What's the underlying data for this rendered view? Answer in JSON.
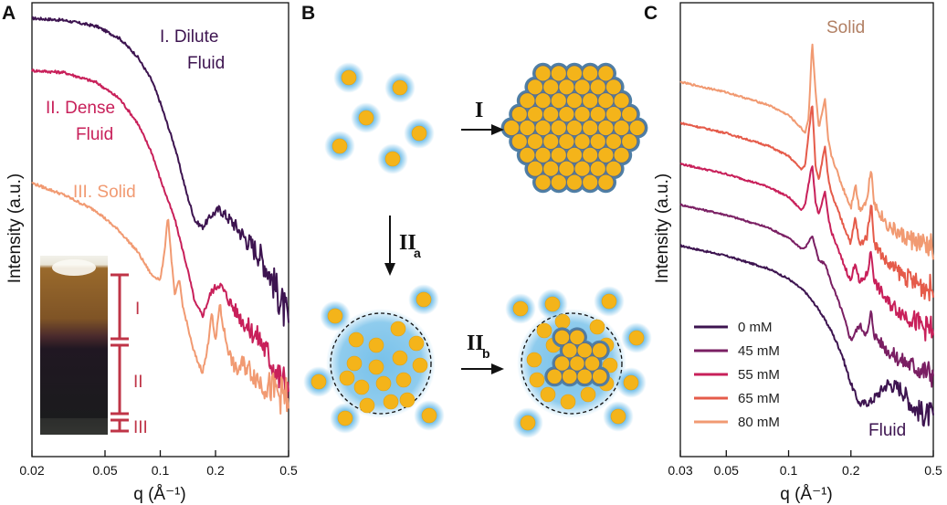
{
  "colors": {
    "dark_purple": "#3d1450",
    "plum": "#7a1f63",
    "magenta": "#c8205a",
    "red_orange": "#e55b4a",
    "salmon": "#f19a72",
    "sphere_fill": "#f4b41a",
    "glow": "#5fb6e6",
    "bracket": "#bf3447"
  },
  "panelA": {
    "label": "A",
    "xlabel": "q (Å⁻¹)",
    "ylabel": "Intensity (a.u.)",
    "annotations": {
      "dilute_1": "I. Dilute",
      "dilute_2": "Fluid",
      "dense_1": "II. Dense",
      "dense_2": "Fluid",
      "solid": "III. Solid"
    },
    "inset_labels": [
      "I",
      "II",
      "III"
    ]
  },
  "panelB": {
    "label": "B",
    "arrow_I": "I",
    "arrow_IIa": "II",
    "arrow_IIa_sub": "a",
    "arrow_IIb": "II",
    "arrow_IIb_sub": "b"
  },
  "panelC": {
    "label": "C",
    "xlabel": "q (Å⁻¹)",
    "ylabel": "Intensity (a.u.)",
    "top_label": "Solid",
    "bottom_label": "Fluid"
  },
  "chart_data": [
    {
      "type": "line",
      "panel": "A",
      "xlabel": "q (Å⁻¹)",
      "ylabel": "Intensity (a.u.)",
      "xscale": "log",
      "xlim": [
        0.02,
        0.5
      ],
      "xticks": [
        0.02,
        0.05,
        0.1,
        0.2,
        0.5
      ],
      "xtick_labels": [
        "0.02",
        "0.05",
        "0.1",
        "0.2",
        "0.5"
      ],
      "y_units": "arbitrary (offset curves, no y ticks)",
      "series": [
        {
          "name": "I. Dilute Fluid",
          "color": "#3d1450",
          "x": [
            0.02,
            0.03,
            0.045,
            0.06,
            0.075,
            0.09,
            0.1,
            0.12,
            0.14,
            0.155,
            0.17,
            0.19,
            0.21,
            0.25,
            0.3,
            0.35,
            0.4,
            0.45,
            0.5
          ],
          "y": [
            9.5,
            9.45,
            9.3,
            9.0,
            8.55,
            7.95,
            7.4,
            6.3,
            5.1,
            4.45,
            4.3,
            4.6,
            4.75,
            4.4,
            3.95,
            3.6,
            3.1,
            2.5,
            1.9
          ]
        },
        {
          "name": "II. Dense Fluid",
          "color": "#c8205a",
          "x": [
            0.02,
            0.03,
            0.045,
            0.06,
            0.075,
            0.09,
            0.1,
            0.12,
            0.14,
            0.155,
            0.17,
            0.19,
            0.21,
            0.25,
            0.3,
            0.35,
            0.4,
            0.45,
            0.5
          ],
          "y": [
            8.2,
            8.15,
            7.9,
            7.5,
            6.9,
            6.15,
            5.5,
            4.5,
            3.3,
            2.4,
            2.1,
            2.7,
            2.9,
            2.3,
            1.8,
            1.5,
            1.0,
            0.5,
            0.3
          ]
        },
        {
          "name": "III. Solid",
          "color": "#f19a72",
          "x": [
            0.02,
            0.03,
            0.045,
            0.06,
            0.075,
            0.09,
            0.1,
            0.105,
            0.11,
            0.115,
            0.12,
            0.127,
            0.133,
            0.14,
            0.15,
            0.16,
            0.17,
            0.18,
            0.19,
            0.2,
            0.21,
            0.225,
            0.24,
            0.26,
            0.28,
            0.3,
            0.33,
            0.36,
            0.4,
            0.45,
            0.5
          ],
          "y": [
            5.4,
            5.1,
            4.7,
            4.2,
            3.7,
            3.1,
            3.0,
            3.6,
            4.6,
            3.5,
            2.6,
            3.0,
            2.3,
            1.9,
            1.3,
            0.95,
            0.7,
            1.2,
            2.2,
            1.4,
            2.4,
            1.6,
            1.1,
            0.7,
            0.9,
            0.8,
            0.6,
            0.4,
            0.3,
            0.15,
            0.0
          ]
        }
      ]
    },
    {
      "type": "line",
      "panel": "C",
      "xlabel": "q (Å⁻¹)",
      "ylabel": "Intensity (a.u.)",
      "xscale": "log",
      "xlim": [
        0.03,
        0.5
      ],
      "xticks": [
        0.03,
        0.05,
        0.1,
        0.2,
        0.5
      ],
      "xtick_labels": [
        "0.03",
        "0.05",
        "0.1",
        "0.2",
        "0.5"
      ],
      "y_units": "arbitrary (offset curves, no y ticks)",
      "legend_position": "bottom-left",
      "series": [
        {
          "name": "0 mM",
          "color": "#3d1450",
          "offset": 0.0,
          "x": [
            0.03,
            0.05,
            0.08,
            0.1,
            0.12,
            0.14,
            0.16,
            0.18,
            0.2,
            0.22,
            0.25,
            0.3,
            0.35,
            0.4,
            0.45,
            0.5
          ],
          "y": [
            7.0,
            6.6,
            6.1,
            5.7,
            5.2,
            4.5,
            3.7,
            2.8,
            1.6,
            0.8,
            0.9,
            1.6,
            1.4,
            0.7,
            0.4,
            0.35
          ]
        },
        {
          "name": "45 mM",
          "color": "#7a1f63",
          "offset": 1.6,
          "x": [
            0.03,
            0.05,
            0.08,
            0.1,
            0.115,
            0.12,
            0.13,
            0.14,
            0.15,
            0.16,
            0.18,
            0.2,
            0.22,
            0.24,
            0.25,
            0.26,
            0.3,
            0.35,
            0.4,
            0.45,
            0.5
          ],
          "y": [
            7.0,
            6.6,
            6.1,
            5.7,
            5.3,
            5.3,
            5.8,
            4.8,
            4.7,
            4.0,
            2.9,
            1.7,
            2.3,
            1.9,
            2.8,
            1.9,
            1.3,
            0.9,
            0.7,
            0.5,
            0.4
          ]
        },
        {
          "name": "55 mM",
          "color": "#c8205a",
          "offset": 3.2,
          "x": [
            0.03,
            0.05,
            0.08,
            0.1,
            0.115,
            0.12,
            0.13,
            0.135,
            0.14,
            0.15,
            0.155,
            0.16,
            0.18,
            0.2,
            0.21,
            0.22,
            0.24,
            0.25,
            0.26,
            0.3,
            0.35,
            0.4,
            0.45,
            0.5
          ],
          "y": [
            7.0,
            6.6,
            6.1,
            5.7,
            5.2,
            5.4,
            7.0,
            5.5,
            5.0,
            5.9,
            5.0,
            4.4,
            3.3,
            2.4,
            3.2,
            2.3,
            2.7,
            3.6,
            2.4,
            1.6,
            1.2,
            0.9,
            0.6,
            0.5
          ]
        },
        {
          "name": "65 mM",
          "color": "#e55b4a",
          "offset": 4.8,
          "x": [
            0.03,
            0.05,
            0.08,
            0.1,
            0.115,
            0.12,
            0.13,
            0.135,
            0.14,
            0.15,
            0.155,
            0.16,
            0.18,
            0.2,
            0.21,
            0.22,
            0.24,
            0.25,
            0.26,
            0.3,
            0.35,
            0.4,
            0.45,
            0.5
          ],
          "y": [
            7.0,
            6.6,
            6.1,
            5.7,
            5.2,
            5.3,
            7.8,
            5.3,
            4.8,
            6.1,
            4.9,
            4.3,
            3.2,
            2.3,
            3.3,
            2.2,
            2.6,
            3.9,
            2.3,
            1.5,
            1.1,
            0.8,
            0.6,
            0.5
          ]
        },
        {
          "name": "80 mM",
          "color": "#f19a72",
          "offset": 6.4,
          "x": [
            0.03,
            0.05,
            0.08,
            0.1,
            0.115,
            0.12,
            0.125,
            0.13,
            0.135,
            0.14,
            0.15,
            0.155,
            0.16,
            0.18,
            0.2,
            0.21,
            0.22,
            0.24,
            0.25,
            0.26,
            0.3,
            0.35,
            0.4,
            0.45,
            0.5
          ],
          "y": [
            7.0,
            6.6,
            6.1,
            5.7,
            5.2,
            5.0,
            5.6,
            8.6,
            6.6,
            5.2,
            6.3,
            4.8,
            4.2,
            3.0,
            2.1,
            3.0,
            2.0,
            2.4,
            3.7,
            2.2,
            1.4,
            1.0,
            0.8,
            0.6,
            0.5
          ]
        }
      ]
    }
  ]
}
